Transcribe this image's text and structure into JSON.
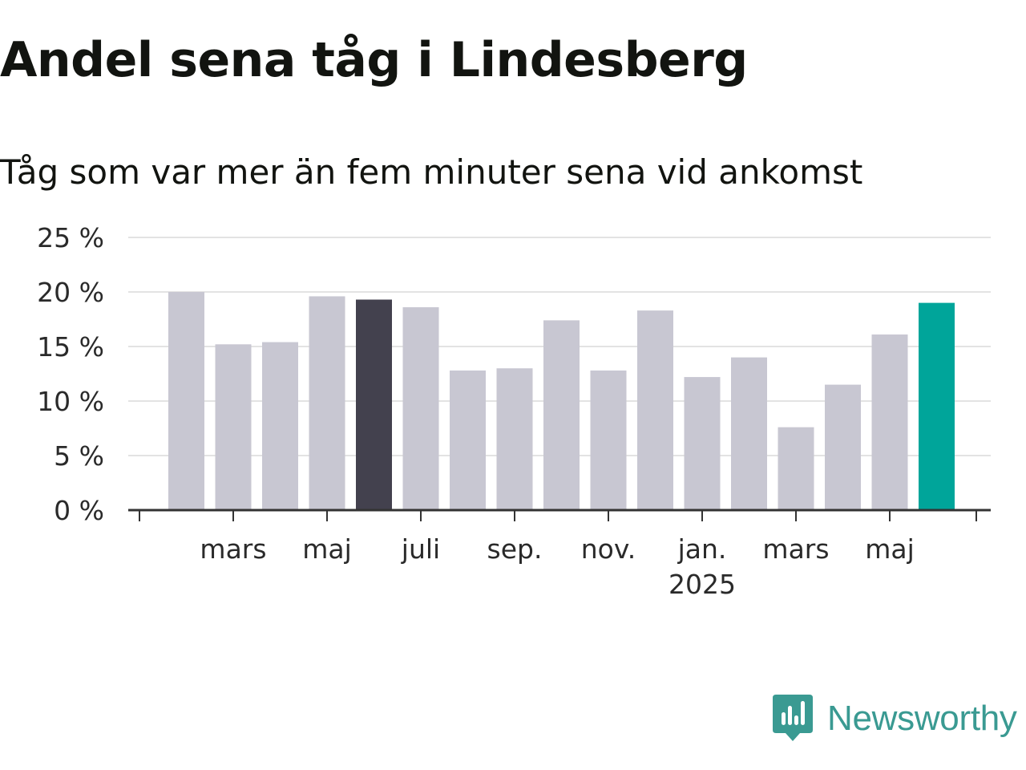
{
  "title": "Andel sena tåg i Lindesberg",
  "subtitle": "Tåg som var mer än fem minuter sena vid ankomst",
  "brand": {
    "name": "Newsworthy",
    "icon": "newsworthy-logo-icon",
    "color": "#3a9a92"
  },
  "colors": {
    "bar_default": "#c8c7d2",
    "bar_highlight_dark": "#43414e",
    "bar_highlight_teal": "#00a59a",
    "grid": "#e3e3e3",
    "axis": "#333333"
  },
  "chart_data": {
    "type": "bar",
    "title": "Andel sena tåg i Lindesberg",
    "subtitle": "Tåg som var mer än fem minuter sena vid ankomst",
    "categories": [
      "2024-02",
      "2024-03",
      "2024-04",
      "2024-05",
      "2024-06",
      "2024-07",
      "2024-08",
      "2024-09",
      "2024-10",
      "2024-11",
      "2024-12",
      "2025-01",
      "2025-02",
      "2025-03",
      "2025-04",
      "2025-05",
      "2025-06"
    ],
    "values": [
      20.0,
      15.2,
      15.4,
      19.6,
      19.3,
      18.6,
      12.8,
      13.0,
      17.4,
      12.8,
      18.3,
      12.2,
      14.0,
      7.6,
      11.5,
      16.1,
      19.0
    ],
    "highlight": {
      "2024-06": "dark",
      "2025-06": "teal"
    },
    "ylim": [
      0,
      25
    ],
    "y_ticks": [
      {
        "value": 0,
        "label": "0 %"
      },
      {
        "value": 5,
        "label": "5 %"
      },
      {
        "value": 10,
        "label": "10 %"
      },
      {
        "value": 15,
        "label": "15 %"
      },
      {
        "value": 20,
        "label": "20 %"
      },
      {
        "value": 25,
        "label": "25 %"
      }
    ],
    "x_ticks": [
      {
        "category": "2024-03",
        "label": "mars"
      },
      {
        "category": "2024-05",
        "label": "maj"
      },
      {
        "category": "2024-07",
        "label": "juli"
      },
      {
        "category": "2024-09",
        "label": "sep."
      },
      {
        "category": "2024-11",
        "label": "nov."
      },
      {
        "category": "2025-01",
        "label": "jan.",
        "sublabel": "2025"
      },
      {
        "category": "2025-03",
        "label": "mars"
      },
      {
        "category": "2025-05",
        "label": "maj"
      }
    ],
    "xlabel": "",
    "ylabel": "",
    "grid": true
  }
}
